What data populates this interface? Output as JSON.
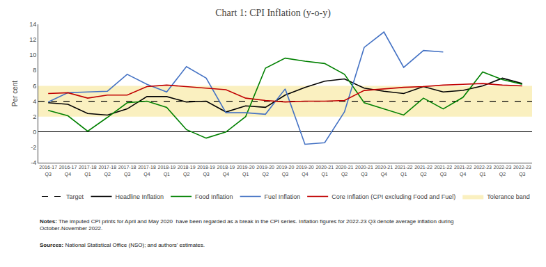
{
  "chart_data": {
    "type": "line",
    "title": "Chart 1: CPI Inflation (y-o-y)",
    "ylabel": "Per cent",
    "categories": [
      "2016-17\nQ3",
      "2016-17\nQ4",
      "2017-18\nQ1",
      "2017-18\nQ2",
      "2017-18\nQ3",
      "2017-18\nQ4",
      "2018-19\nQ1",
      "2018-19\nQ2",
      "2018-19\nQ3",
      "2018-19\nQ4",
      "2019-20\nQ1",
      "2019-20\nQ2",
      "2019-20\nQ3",
      "2019-20\nQ4",
      "2020-21\nQ1",
      "2020-21\nQ2",
      "2020-21\nQ3",
      "2020-21\nQ4",
      "2021-22\nQ1",
      "2021-22\nQ2",
      "2021-22\nQ3",
      "2021-22\nQ4",
      "2022-23\nQ1",
      "2022-23\nQ2",
      "2022-23\nQ3"
    ],
    "series": [
      {
        "name": "Headline Inflation",
        "color": "#000000",
        "values": [
          3.8,
          3.6,
          2.4,
          2.2,
          3.0,
          4.6,
          4.6,
          3.9,
          4.0,
          2.6,
          3.4,
          3.2,
          4.8,
          5.8,
          6.6,
          6.9,
          5.7,
          5.3,
          5.0,
          5.9,
          5.2,
          5.4,
          6.0,
          7.0,
          6.3
        ]
      },
      {
        "name": "Food Inflation",
        "color": "#008000",
        "values": [
          2.8,
          2.1,
          0.1,
          1.9,
          3.8,
          4.0,
          3.2,
          0.3,
          -0.8,
          0.0,
          2.0,
          8.3,
          9.6,
          9.2,
          8.9,
          7.5,
          3.8,
          3.0,
          2.2,
          4.4,
          3.0,
          4.5,
          7.8,
          6.8,
          6.2
        ]
      },
      {
        "name": "Fuel Inflation",
        "color": "#4472C4",
        "values": [
          3.9,
          5.1,
          5.2,
          5.3,
          7.5,
          6.2,
          5.2,
          8.5,
          7.0,
          2.5,
          2.5,
          2.3,
          5.6,
          -1.6,
          -1.4,
          2.6,
          11.0,
          13.0,
          8.4,
          10.6,
          10.4,
          null,
          null,
          null,
          null
        ]
      },
      {
        "name": "Core Inflation (CPI excluding Food and Fuel)",
        "color": "#C00000",
        "values": [
          5.0,
          5.1,
          4.4,
          4.8,
          4.8,
          5.9,
          6.1,
          5.9,
          5.7,
          5.5,
          4.4,
          4.1,
          3.9,
          4.0,
          4.0,
          4.1,
          5.4,
          5.6,
          5.8,
          5.9,
          6.1,
          6.2,
          6.3,
          6.1,
          6.0
        ]
      }
    ],
    "reference_lines": [
      {
        "name": "Target",
        "value": 4,
        "color": "#000000",
        "line_style": "dashed"
      }
    ],
    "bands": [
      {
        "name": "Tolerance band",
        "range": [
          2,
          6
        ],
        "color": "#FAF0C0"
      }
    ],
    "ylim": [
      -4,
      14
    ],
    "yticks": [
      -4,
      -2,
      0,
      2,
      4,
      6,
      8,
      10,
      12,
      14
    ],
    "grid": false,
    "legend": "bottom",
    "notes_label": "Notes:",
    "notes": "The imputed CPI prints for April and May 2020  have been regarded as a break in the CPI series. Inflation figures for 2022-23 Q3 denote average inflation during\nOctober-November 2022.",
    "sources_label": "Sources:",
    "sources": "National Statistical Office (NSO); and authors' estimates."
  }
}
